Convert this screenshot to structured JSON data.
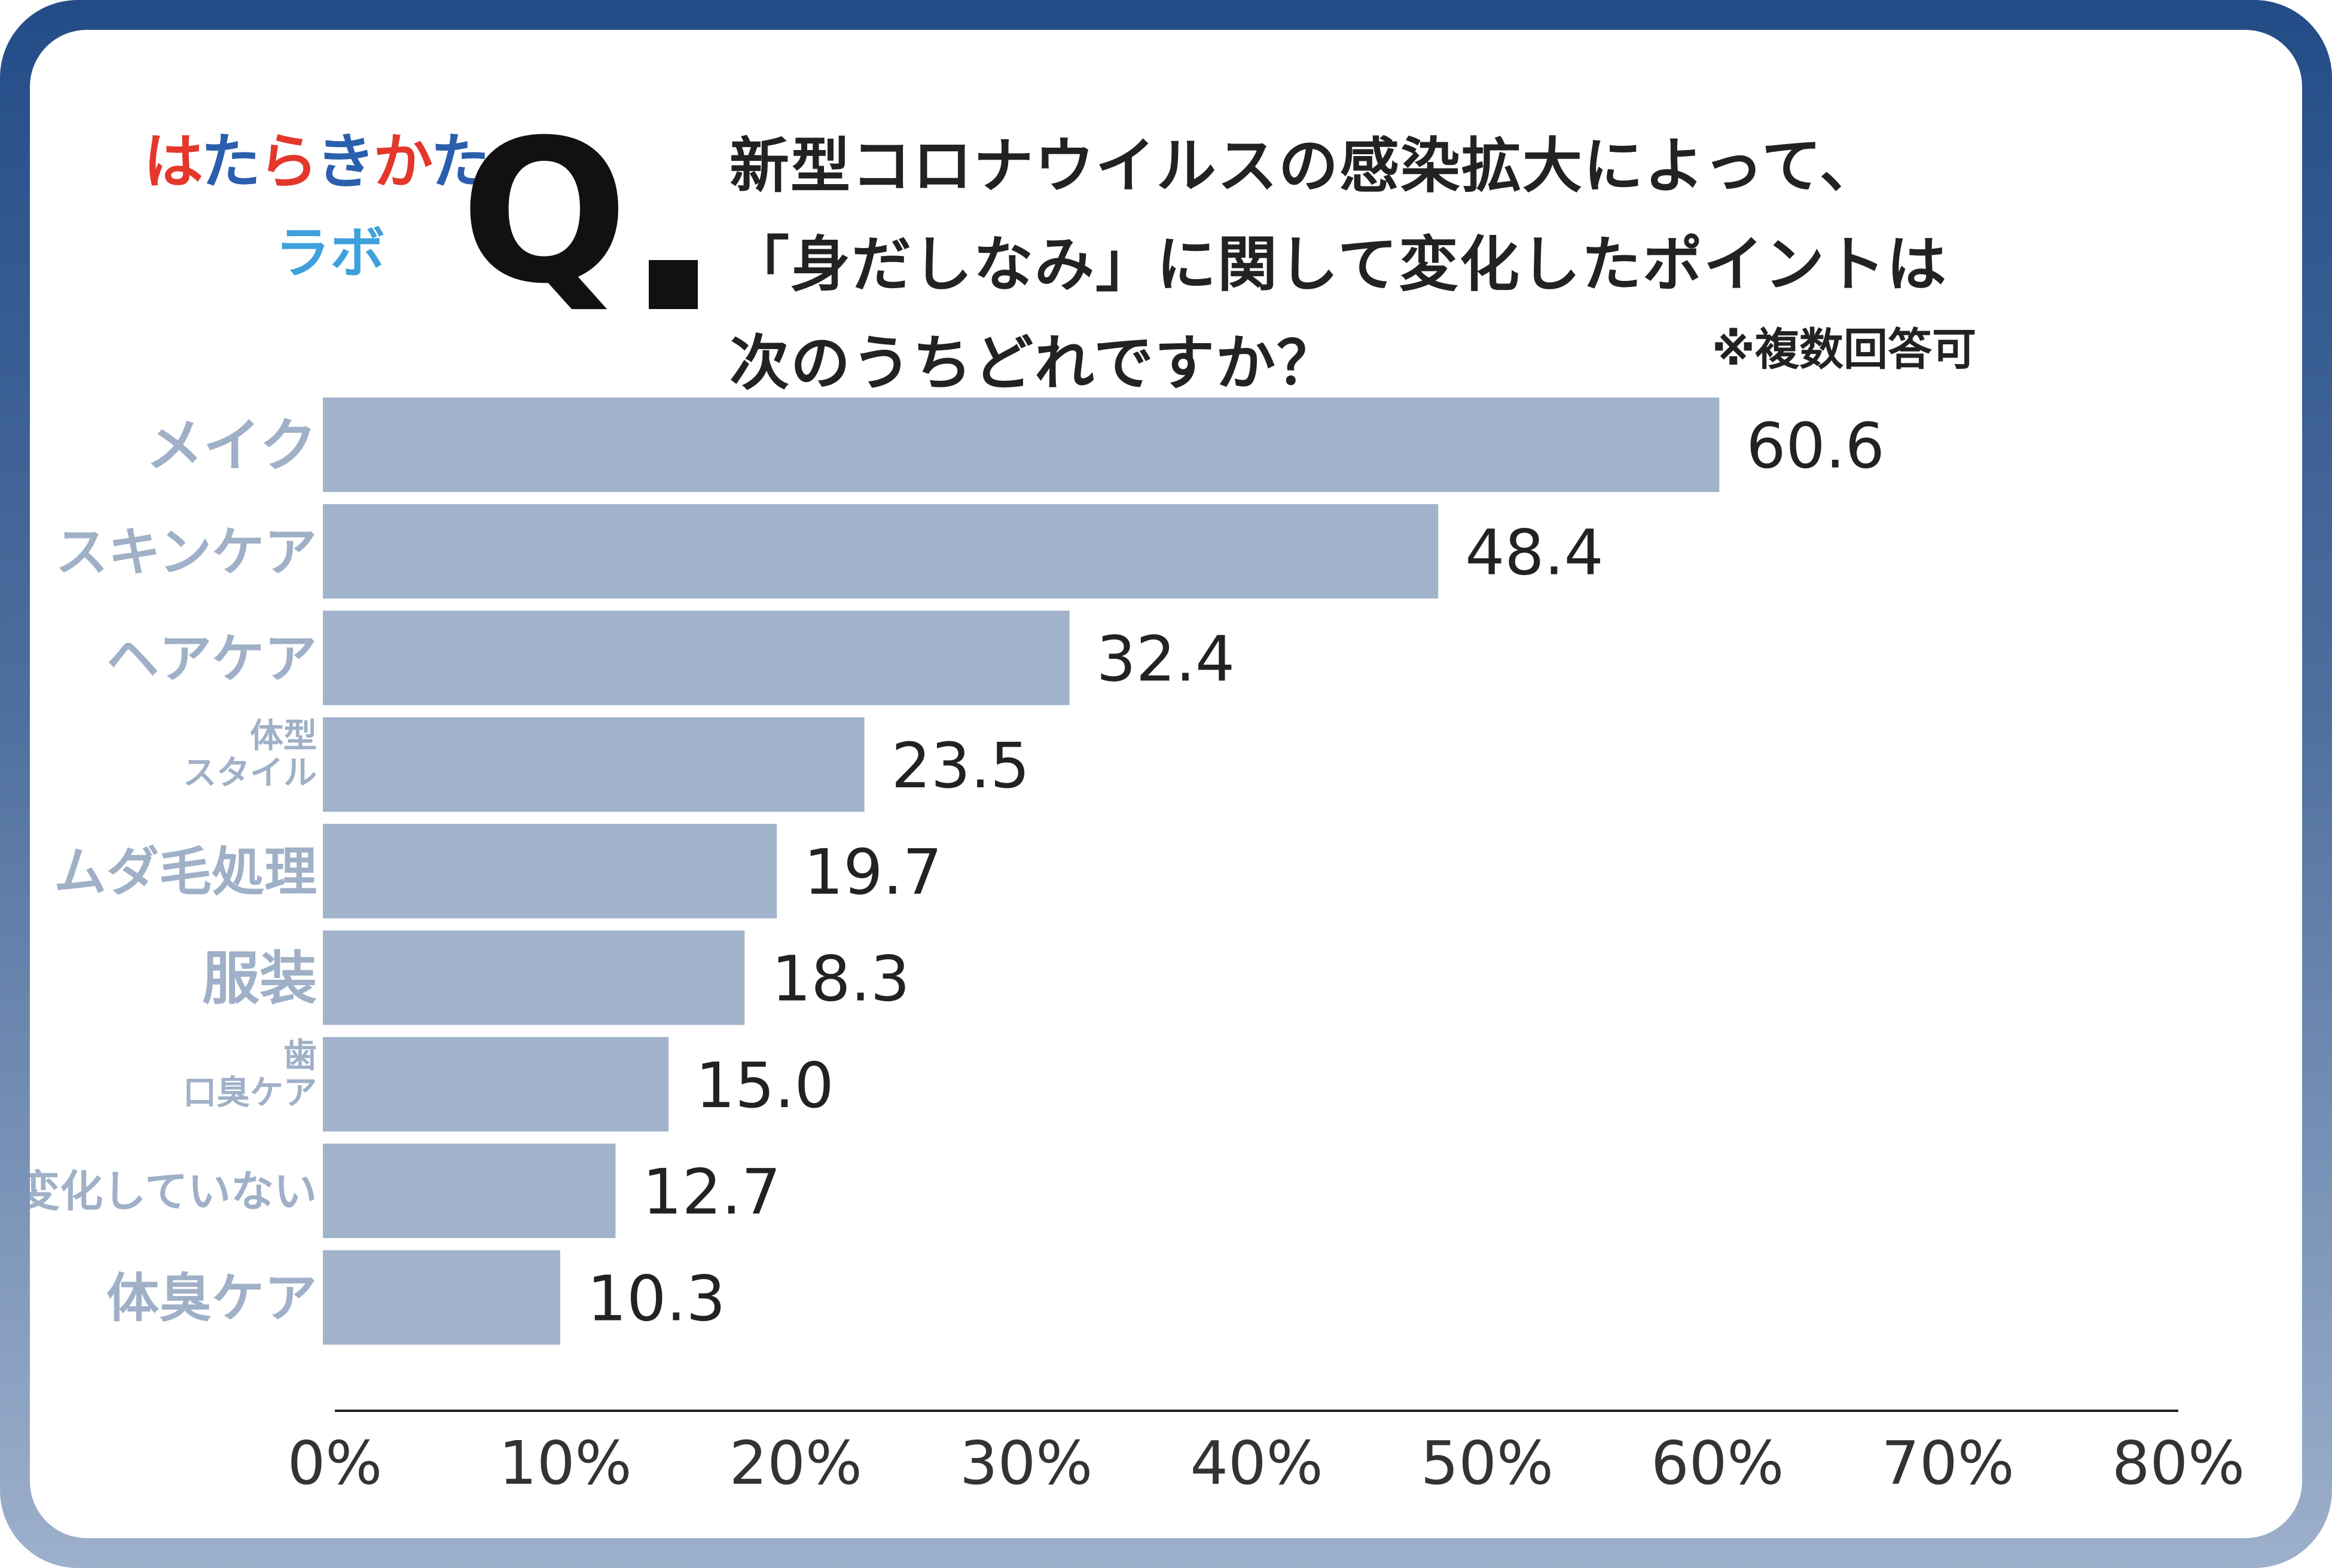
{
  "logo": {
    "line1": "はたらきかた",
    "line2": "ラボ",
    "colors": [
      "#e4372c",
      "#2b5eac",
      "#3fa0dc"
    ]
  },
  "question": {
    "mark": "Q",
    "lines": [
      "新型コロナウイルスの感染拡大によって、",
      "「身だしなみ」に関して変化したポイントは",
      "次のうちどれですか？"
    ],
    "note": "※複数回答可"
  },
  "colors": {
    "bar": "#a0b3cb",
    "category_label": "#9fb0c7",
    "frame_top": "#234c87",
    "frame_bottom": "#9db0cc"
  },
  "chart_data": {
    "type": "bar",
    "orientation": "horizontal",
    "categories": [
      "メイク",
      "スキンケア",
      "ヘアケア",
      "体型\nスタイル",
      "ムダ毛処理",
      "服装",
      "歯\n口臭ケア",
      "変化していない",
      "体臭ケア"
    ],
    "values": [
      60.6,
      48.4,
      32.4,
      23.5,
      19.7,
      18.3,
      15.0,
      12.7,
      10.3
    ],
    "value_labels": [
      "60.6",
      "48.4",
      "32.4",
      "23.5",
      "19.7",
      "18.3",
      "15.0",
      "12.7",
      "10.3"
    ],
    "xlim": [
      0,
      80
    ],
    "xticks": [
      "0%",
      "10%",
      "20%",
      "30%",
      "40%",
      "50%",
      "60%",
      "70%",
      "80%"
    ],
    "grid": false,
    "legend": "none"
  }
}
